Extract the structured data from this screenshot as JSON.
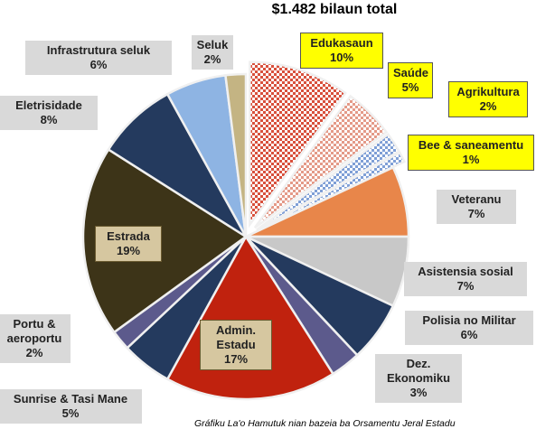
{
  "chart_data": {
    "type": "pie",
    "subtitle": "$1.482 bilaun total",
    "note": "Gráfiku La'o Hamutuk nian bazeia ba Orsamentu Jeral Estadu",
    "categories": [
      "Edukasaun",
      "Saúde",
      "Agrikultura",
      "Bee & saneamentu",
      "Veteranu",
      "Asistensia sosial",
      "Polisia no Militar",
      "Dez. Ekonomiku",
      "Admin. Estadu",
      "Sunrise & Tasi Mane",
      "Portu & aeroportu",
      "Estrada",
      "Eletrisidade",
      "Infrastrutura seluk",
      "Seluk"
    ],
    "values": [
      10,
      5,
      2,
      1,
      7,
      7,
      6,
      3,
      17,
      5,
      2,
      19,
      8,
      6,
      2
    ],
    "value_labels": [
      "10%",
      "5%",
      "2%",
      "1%",
      "7%",
      "7%",
      "6%",
      "3%",
      "17%",
      "5%",
      "2%",
      "19%",
      "8%",
      "6%",
      "2%"
    ],
    "colors": [
      "#d8503c",
      "#e49a88",
      "#7f9fd6",
      "#7f9fd6",
      "#e8864a",
      "#c8c8c8",
      "#243a5e",
      "#5c5a8c",
      "#c0220e",
      "#243a5e",
      "#5c5a8c",
      "#3d3418",
      "#243a5e",
      "#8eb4e3",
      "#c4b483"
    ],
    "explode": [
      true,
      true,
      true,
      true,
      false,
      false,
      false,
      false,
      false,
      false,
      false,
      false,
      false,
      false,
      false
    ]
  }
}
